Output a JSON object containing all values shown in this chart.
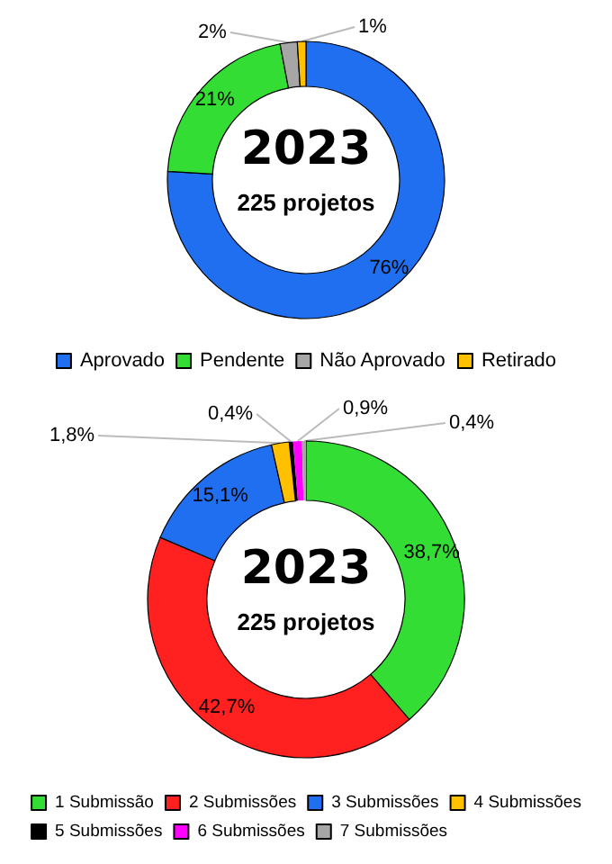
{
  "chart_data": [
    {
      "type": "donut",
      "categories": [
        "Aprovado",
        "Pendente",
        "Não Aprovado",
        "Retirado"
      ],
      "values": [
        76,
        21,
        2,
        1
      ],
      "colors": [
        "#1f6ff0",
        "#33dd33",
        "#a6a6a6",
        "#ffc000"
      ],
      "value_labels": [
        "76%",
        "21%",
        "2%",
        "1%"
      ],
      "annotations": [
        "2023",
        "225 projetos"
      ],
      "legend": "bottom"
    },
    {
      "type": "donut",
      "categories": [
        "1 Submissão",
        "2 Submissões",
        "3 Submissões",
        "4 Submissões",
        "5 Submissões",
        "6 Submissões",
        "7 Submissões"
      ],
      "values": [
        38.7,
        42.7,
        15.1,
        1.8,
        0.4,
        0.9,
        0.4
      ],
      "colors": [
        "#33dd33",
        "#ff2020",
        "#1f6ff0",
        "#ffc000",
        "#000000",
        "#ff00ff",
        "#a6a6a6"
      ],
      "value_labels": [
        "38,7%",
        "42,7%",
        "15,1%",
        "1,8%",
        "0,4%",
        "0,9%",
        "0,4%"
      ],
      "annotations": [
        "2023",
        "225 projetos"
      ],
      "legend": "bottom"
    }
  ]
}
